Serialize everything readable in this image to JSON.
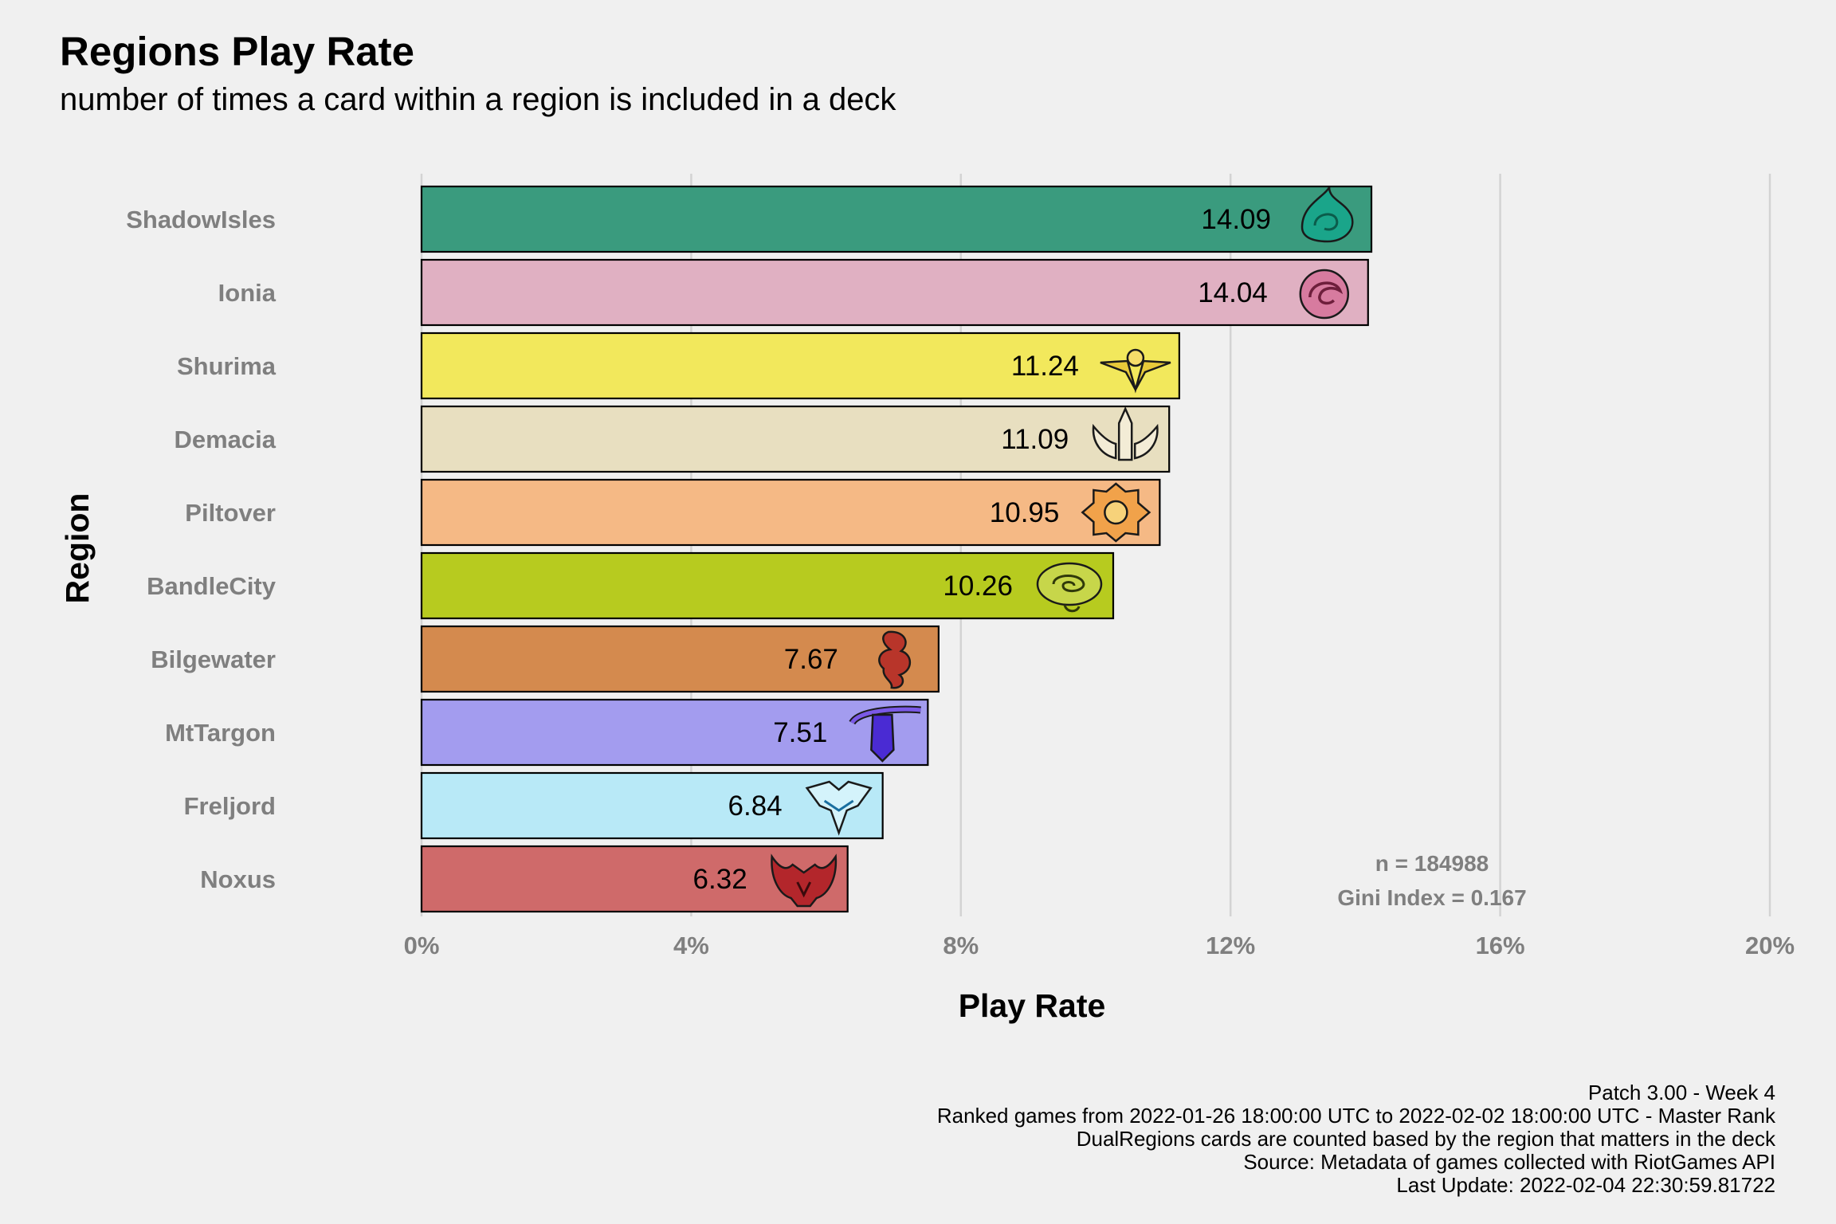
{
  "chart_data": {
    "type": "bar",
    "orientation": "horizontal",
    "title": "Regions Play Rate",
    "subtitle": "number of times a card within a region is included in a deck",
    "xlabel": "Play Rate",
    "ylabel": "Region",
    "xlim": [
      0,
      20
    ],
    "x_ticks": [
      "0%",
      "4%",
      "8%",
      "12%",
      "16%",
      "20%"
    ],
    "grid": "vertical major gridlines",
    "legend": "none",
    "categories": [
      "ShadowIsles",
      "Ionia",
      "Shurima",
      "Demacia",
      "Piltover",
      "BandleCity",
      "Bilgewater",
      "MtTargon",
      "Freljord",
      "Noxus"
    ],
    "values": [
      14.09,
      14.04,
      11.24,
      11.09,
      10.95,
      10.26,
      7.67,
      7.51,
      6.84,
      6.32
    ],
    "value_labels": [
      "14.09",
      "14.04",
      "11.24",
      "11.09",
      "10.95",
      "10.26",
      "7.67",
      "7.51",
      "6.84",
      "6.32"
    ],
    "colors": [
      "#3a9b7e",
      "#e0b0c2",
      "#f2e85c",
      "#e8dfc0",
      "#f5b985",
      "#b7cb1f",
      "#d48a4e",
      "#a39cef",
      "#b8e9f7",
      "#cf6a6a"
    ],
    "icons": [
      "shadowisles-icon",
      "ionia-icon",
      "shurima-icon",
      "demacia-icon",
      "piltover-icon",
      "bandlecity-icon",
      "bilgewater-icon",
      "mttargon-icon",
      "freljord-icon",
      "noxus-icon"
    ],
    "annotations": [
      "n = 184988",
      "Gini Index = 0.167"
    ],
    "caption": [
      "Patch 3.00 - Week 4",
      "Ranked games from 2022-01-26 18:00:00 UTC to 2022-02-02 18:00:00 UTC - Master Rank",
      "DualRegions cards are counted based by the region that matters in the deck",
      "Source: Metadata of games collected with RiotGames API",
      "Last Update: 2022-02-04 22:30:59.81722"
    ]
  }
}
